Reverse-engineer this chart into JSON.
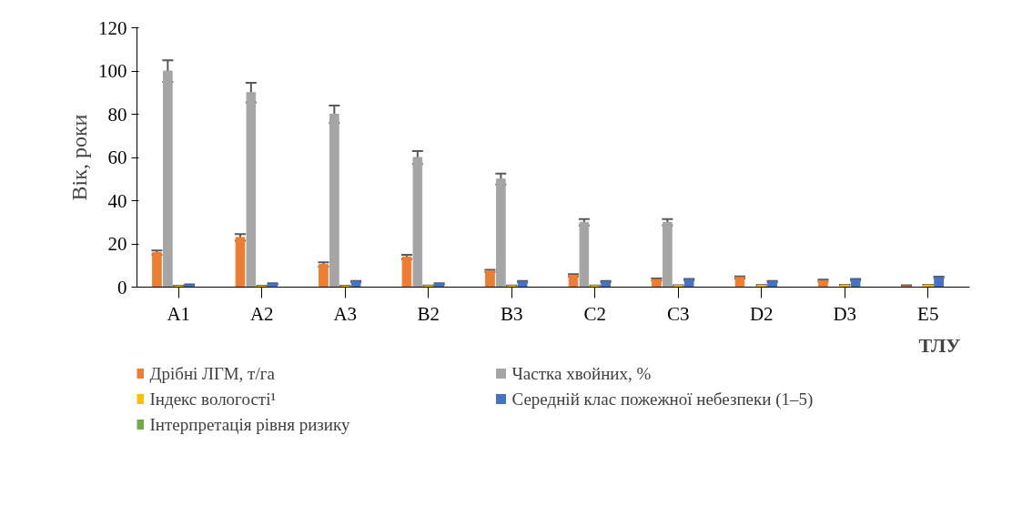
{
  "chart_data": {
    "type": "bar",
    "ylabel": "Вік, роки",
    "xlabel": "ТЛУ",
    "categories": [
      "A1",
      "A2",
      "A3",
      "B2",
      "B3",
      "C2",
      "C3",
      "D2",
      "D3",
      "E5"
    ],
    "series": [
      {
        "name": "Дрібні ЛГМ, т/га",
        "color": "#ed7d31",
        "values": [
          16,
          23,
          10.5,
          14,
          7.5,
          5.5,
          3.5,
          4.5,
          3,
          0.5
        ],
        "errors": [
          1,
          1.5,
          1,
          1,
          0.5,
          0.5,
          0.5,
          0.5,
          0.5,
          0.3
        ]
      },
      {
        "name": "Частка хвойних, %",
        "color": "#a5a5a5",
        "values": [
          100,
          90,
          80,
          60,
          50,
          30,
          30,
          0,
          0,
          0
        ],
        "errors": [
          5,
          4.5,
          4,
          3,
          2.5,
          1.5,
          1.5,
          null,
          null,
          null
        ]
      },
      {
        "name": "Індекс вологості¹",
        "color": "#ffc000",
        "values": [
          0.5,
          0.5,
          0.5,
          0.6,
          0.6,
          0.6,
          0.7,
          0.8,
          1,
          1
        ],
        "errors": [
          0.1,
          0.1,
          0.1,
          0.1,
          0.1,
          0.1,
          0.1,
          0.1,
          0.1,
          0.1
        ]
      },
      {
        "name": "Середній клас пожежної небезпеки (1–5)",
        "color": "#4472c4",
        "values": [
          1,
          1.5,
          2.5,
          1.5,
          2.5,
          2.5,
          3.5,
          2.5,
          3.5,
          4.5
        ],
        "errors": [
          0.3,
          0.3,
          0.3,
          0.3,
          0.3,
          0.3,
          0.3,
          0.3,
          0.3,
          0.3
        ]
      },
      {
        "name": "Інтерпретація рівня ризику",
        "color": "#70ad47",
        "values": [
          0,
          0,
          0,
          0,
          0,
          0,
          0,
          0,
          0,
          0
        ]
      }
    ],
    "ylim": [
      0,
      120
    ],
    "yticks": [
      0,
      20,
      40,
      60,
      80,
      100,
      120
    ],
    "grid": false,
    "legend": "bottom"
  }
}
